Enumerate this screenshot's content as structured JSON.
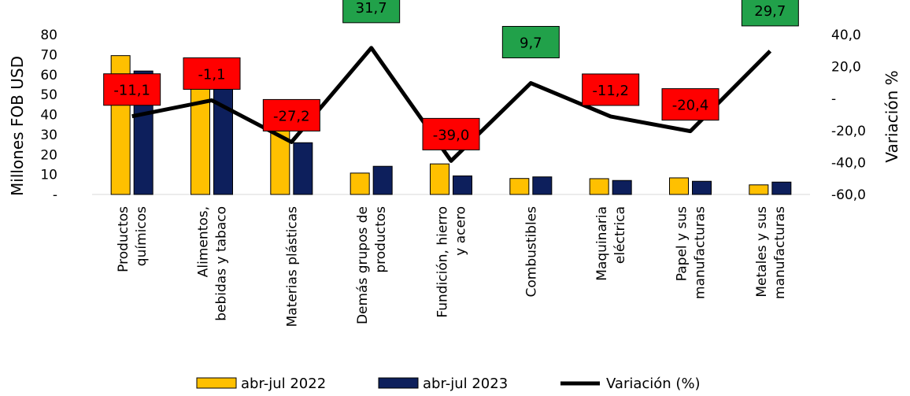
{
  "chart_data": {
    "type": "bar",
    "categories": [
      [
        "Productos",
        "químicos"
      ],
      [
        "Alimentos,",
        "bebidas y tabaco"
      ],
      [
        "Materias plásticas"
      ],
      [
        "Demás grupos de",
        "productos"
      ],
      [
        "Fundición, hierro",
        "y acero"
      ],
      [
        "Combustibles"
      ],
      [
        "Maquinaria",
        "eléctrica"
      ],
      [
        "Papel y sus",
        "manufacturas"
      ],
      [
        "Metales y sus",
        "manufacturas"
      ]
    ],
    "series": [
      {
        "name": "abr-jul 2022",
        "color": "#FFC000",
        "axis": "left",
        "values": [
          69.5,
          56.5,
          35.5,
          10.7,
          15.3,
          8.0,
          7.9,
          8.3,
          4.8
        ]
      },
      {
        "name": "abr-jul 2023",
        "color": "#0D1F5C",
        "axis": "left",
        "values": [
          61.8,
          55.9,
          25.9,
          14.1,
          9.3,
          8.8,
          7.0,
          6.6,
          6.2
        ]
      },
      {
        "name": "Variación (%)",
        "color": "#000000",
        "axis": "right",
        "type": "line",
        "values": [
          -11.1,
          -1.1,
          -27.2,
          31.7,
          -39.0,
          9.7,
          -11.2,
          -20.4,
          29.7
        ],
        "labels": [
          "-11,1",
          "-1,1",
          "-27,2",
          "31,7",
          "-39,0",
          "9,7",
          "-11,2",
          "-20,4",
          "29,7"
        ]
      }
    ],
    "ylabel": "Millones FOB USD",
    "y2label": "Variación %",
    "ylim": [
      0,
      80
    ],
    "y2lim": [
      -60,
      40
    ],
    "yticks": [
      "-",
      "10",
      "20",
      "30",
      "40",
      "50",
      "60",
      "70",
      "80"
    ],
    "y2ticks": [
      "-60,0",
      "-40,0",
      "-20,0",
      "-",
      "20,0",
      "40,0"
    ],
    "label_colors": {
      "positive": "#21A14A",
      "negative": "#FF0000"
    },
    "legend_position": "bottom",
    "grid": false
  }
}
